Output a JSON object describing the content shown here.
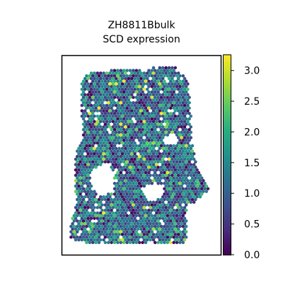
{
  "chart_data": {
    "type": "scatter",
    "subtype": "hexbin spatial expression map",
    "title": "ZH8811Bbulk",
    "subtitle": "SCD expression",
    "xlabel": "",
    "ylabel": "",
    "axes_ticks_visible": false,
    "grid": false,
    "colormap": "viridis",
    "colorbar": {
      "range": [
        0.0,
        3.25
      ],
      "ticks": [
        0.0,
        0.5,
        1.0,
        1.5,
        2.0,
        2.5,
        3.0
      ],
      "tick_labels": [
        "0.0",
        "0.5",
        "1.0",
        "1.5",
        "2.0",
        "2.5",
        "3.0"
      ],
      "placement": "right"
    },
    "value_distribution": "mostly 0.5–1.5 with scattered spots up to ~3.2",
    "tissue_holes": 3
  }
}
